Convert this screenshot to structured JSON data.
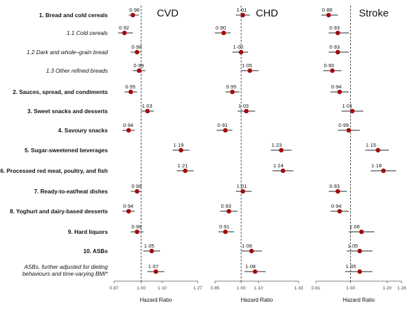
{
  "chart_data": {
    "type": "forest",
    "xlabel": "Hazard Ratio",
    "reference_line": 1.0,
    "rows": [
      {
        "label": "1.  Bread and cold cereals",
        "style": "bold"
      },
      {
        "label": "1.1 Cold cereals",
        "style": "italic"
      },
      {
        "label": "1.2 Dark and whole–grain bread",
        "style": "italic"
      },
      {
        "label": "1.3 Other refined breads",
        "style": "italic"
      },
      {
        "label": "2. Sauces, spread, and condiments",
        "style": "bold"
      },
      {
        "label": "3. Sweet snacks and desserts",
        "style": "bold"
      },
      {
        "label": "4. Savoury snacks",
        "style": "bold"
      },
      {
        "label": "5. Sugar-sweetened beverages",
        "style": "bold"
      },
      {
        "label": "6. Processed red meat, poultry, and fish",
        "style": "bold"
      },
      {
        "label": "7. Ready-to-eat/heat dishes",
        "style": "bold"
      },
      {
        "label": "8. Yoghurt and dairy-based desserts",
        "style": "bold"
      },
      {
        "label": "9. Hard liquors",
        "style": "bold"
      },
      {
        "label": "10. ASBs",
        "style": "bold"
      },
      {
        "label": "ASBs, further adjusted for dieting behaviours and time-varying BMI*",
        "lines": [
          "ASBs, further adjusted for dieting",
          "behaviours and time-varying BMI*"
        ],
        "style": "italic"
      }
    ],
    "panels": [
      {
        "title": "CVD",
        "xlim": [
          0.87,
          1.27
        ],
        "ticks": [
          0.87,
          1.0,
          1.1,
          1.27
        ],
        "tick_labels": [
          "0·87",
          "1·00",
          "1·10",
          "1·27"
        ],
        "hr": [
          0.96,
          0.92,
          0.98,
          0.99,
          0.95,
          1.03,
          0.94,
          1.19,
          1.21,
          0.98,
          0.94,
          0.98,
          1.05,
          1.07
        ],
        "hr_labels": [
          "0·96",
          "0·92",
          "0·98",
          "0·99",
          "0·95",
          "1·03",
          "0·94",
          "1·19",
          "1·21",
          "0·98",
          "0·94",
          "0·98",
          "1·05",
          "1·07"
        ],
        "ci_low": [
          0.94,
          0.89,
          0.95,
          0.96,
          0.92,
          1.0,
          0.91,
          1.15,
          1.17,
          0.95,
          0.91,
          0.95,
          1.01,
          1.03
        ],
        "ci_high": [
          0.99,
          0.96,
          1.0,
          1.02,
          0.98,
          1.06,
          0.97,
          1.23,
          1.25,
          1.0,
          0.97,
          1.01,
          1.09,
          1.11
        ]
      },
      {
        "title": "CHD",
        "xlim": [
          0.85,
          1.33
        ],
        "ticks": [
          0.85,
          1.0,
          1.1,
          1.33
        ],
        "tick_labels": [
          "0·85",
          "1·00",
          "1·10",
          "1·33"
        ],
        "hr": [
          1.01,
          0.9,
          1.0,
          1.05,
          0.95,
          1.03,
          0.91,
          1.23,
          1.24,
          1.01,
          0.93,
          0.91,
          1.06,
          1.08
        ],
        "hr_labels": [
          "1·01",
          "0·90",
          "1·00",
          "1·05",
          "0·95",
          "1·03",
          "0·91",
          "1·23",
          "1·24",
          "1·01",
          "0·93",
          "0·91",
          "1·06",
          "1·08"
        ],
        "ci_low": [
          0.97,
          0.85,
          0.95,
          1.0,
          0.91,
          0.98,
          0.86,
          1.17,
          1.18,
          0.97,
          0.88,
          0.87,
          1.0,
          1.02
        ],
        "ci_high": [
          1.05,
          0.94,
          1.04,
          1.1,
          0.99,
          1.08,
          0.95,
          1.29,
          1.3,
          1.06,
          0.98,
          0.96,
          1.12,
          1.14
        ]
      },
      {
        "title": "Stroke",
        "xlim": [
          0.81,
          1.28
        ],
        "ticks": [
          0.81,
          1.0,
          1.2,
          1.28
        ],
        "tick_labels": [
          "0·81",
          "1·00",
          "1·20",
          "1·28"
        ],
        "hr": [
          0.88,
          0.93,
          0.93,
          0.9,
          0.94,
          1.01,
          0.99,
          1.15,
          1.18,
          0.93,
          0.94,
          1.06,
          1.05,
          1.05
        ],
        "hr_labels": [
          "0·88",
          "0·93",
          "0·93",
          "0·90",
          "0·94",
          "1·01",
          "0·99",
          "1·15",
          "1·18",
          "0·93",
          "0·94",
          "1·06",
          "1·05",
          "1·05"
        ],
        "ci_low": [
          0.84,
          0.88,
          0.88,
          0.85,
          0.89,
          0.95,
          0.93,
          1.08,
          1.11,
          0.88,
          0.89,
          0.99,
          0.98,
          0.97
        ],
        "ci_high": [
          0.93,
          0.99,
          0.99,
          0.95,
          0.99,
          1.07,
          1.05,
          1.21,
          1.25,
          0.98,
          0.99,
          1.13,
          1.12,
          1.12
        ]
      }
    ]
  },
  "colors": {
    "point": "#a30c0c",
    "ci_line": "#222222",
    "axis": "#555555",
    "reference": "#222222"
  }
}
